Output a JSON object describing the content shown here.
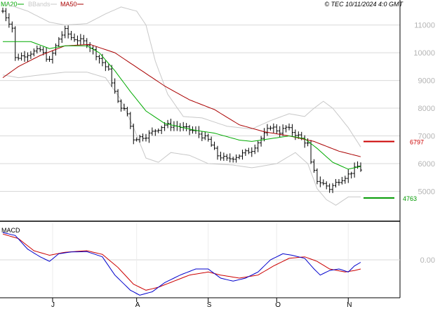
{
  "header": {
    "legend": [
      {
        "label": "MA20",
        "color": "#00aa00"
      },
      {
        "label": "BBands",
        "color": "#c8c8c8"
      },
      {
        "label": "MA50",
        "color": "#aa0000"
      }
    ],
    "copyright": "© TEC 10/11/2024 4:0 GMT"
  },
  "macd_label": "MACD",
  "colors": {
    "price": "#000000",
    "ma20": "#00aa00",
    "ma50": "#aa0000",
    "bbands": "#c8c8c8",
    "macd": "#0000cc",
    "signal": "#cc0000",
    "resistance": "#cc0000",
    "support": "#009900",
    "grid": "#d9d9d9",
    "label": "#b4b4b4"
  },
  "chart_data": {
    "type": "line",
    "price_panel": {
      "y_ticks": [
        {
          "value": 11000,
          "label": "11000"
        },
        {
          "value": 10000,
          "label": "10000"
        },
        {
          "value": 9000,
          "label": "9000"
        },
        {
          "value": 8000,
          "label": "8000"
        },
        {
          "value": 7000,
          "label": "7000"
        },
        {
          "value": 6000,
          "label": "6000"
        },
        {
          "value": 5000,
          "label": "5000"
        }
      ],
      "ylim": [
        4000,
        11800
      ],
      "levels": [
        {
          "name": "resistance",
          "value": 6797,
          "label": "6797"
        },
        {
          "name": "support",
          "value": 4763,
          "label": "4763"
        }
      ],
      "x_months": [
        {
          "index": 16,
          "label": "J"
        },
        {
          "index": 43,
          "label": "A"
        },
        {
          "index": 66,
          "label": "S"
        },
        {
          "index": 88,
          "label": "O"
        },
        {
          "index": 111,
          "label": "N"
        }
      ],
      "n_bars": 116,
      "price_path": [
        [
          0,
          11500
        ],
        [
          3,
          10900
        ],
        [
          4,
          9800
        ],
        [
          9,
          10000
        ],
        [
          12,
          10100
        ],
        [
          15,
          9700
        ],
        [
          18,
          10500
        ],
        [
          20,
          10800
        ],
        [
          22,
          10550
        ],
        [
          27,
          10350
        ],
        [
          31,
          9800
        ],
        [
          34,
          9350
        ],
        [
          37,
          8200
        ],
        [
          40,
          7800
        ],
        [
          42,
          6900
        ],
        [
          46,
          7000
        ],
        [
          52,
          7400
        ],
        [
          56,
          7350
        ],
        [
          62,
          7150
        ],
        [
          66,
          6850
        ],
        [
          69,
          6300
        ],
        [
          72,
          6150
        ],
        [
          76,
          6300
        ],
        [
          80,
          6500
        ],
        [
          84,
          7050
        ],
        [
          86,
          7350
        ],
        [
          89,
          7150
        ],
        [
          91,
          7300
        ],
        [
          95,
          7000
        ],
        [
          98,
          6700
        ],
        [
          99,
          6000
        ],
        [
          101,
          5400
        ],
        [
          104,
          5200
        ],
        [
          105,
          5100
        ],
        [
          108,
          5400
        ],
        [
          111,
          5600
        ],
        [
          114,
          5900
        ],
        [
          115,
          5800
        ]
      ],
      "ma20_path": [
        [
          0,
          10400
        ],
        [
          9,
          10400
        ],
        [
          15,
          10150
        ],
        [
          20,
          10250
        ],
        [
          27,
          10250
        ],
        [
          31,
          10000
        ],
        [
          36,
          9350
        ],
        [
          41,
          8600
        ],
        [
          46,
          7900
        ],
        [
          52,
          7450
        ],
        [
          62,
          7200
        ],
        [
          68,
          7100
        ],
        [
          76,
          6850
        ],
        [
          80,
          6800
        ],
        [
          86,
          6900
        ],
        [
          92,
          7000
        ],
        [
          97,
          6900
        ],
        [
          101,
          6550
        ],
        [
          106,
          6050
        ],
        [
          111,
          5800
        ],
        [
          115,
          5900
        ]
      ],
      "ma50_path": [
        [
          0,
          9100
        ],
        [
          5,
          9500
        ],
        [
          12,
          9900
        ],
        [
          20,
          10250
        ],
        [
          28,
          10300
        ],
        [
          36,
          10000
        ],
        [
          44,
          9400
        ],
        [
          52,
          8800
        ],
        [
          60,
          8300
        ],
        [
          68,
          7950
        ],
        [
          76,
          7400
        ],
        [
          84,
          7150
        ],
        [
          92,
          7000
        ],
        [
          100,
          6800
        ],
        [
          108,
          6450
        ],
        [
          115,
          6250
        ]
      ],
      "bb_upper_path": [
        [
          0,
          11800
        ],
        [
          8,
          11500
        ],
        [
          15,
          11100
        ],
        [
          20,
          11000
        ],
        [
          27,
          11050
        ],
        [
          33,
          11400
        ],
        [
          38,
          11650
        ],
        [
          43,
          11500
        ],
        [
          46,
          11000
        ],
        [
          49,
          9700
        ],
        [
          53,
          8500
        ],
        [
          58,
          7700
        ],
        [
          64,
          7650
        ],
        [
          72,
          7350
        ],
        [
          80,
          7250
        ],
        [
          86,
          7550
        ],
        [
          92,
          7800
        ],
        [
          97,
          7700
        ],
        [
          100,
          8000
        ],
        [
          103,
          8250
        ],
        [
          106,
          8000
        ],
        [
          111,
          7300
        ],
        [
          115,
          6600
        ]
      ],
      "bb_lower_path": [
        [
          0,
          9200
        ],
        [
          5,
          9100
        ],
        [
          12,
          9200
        ],
        [
          20,
          9300
        ],
        [
          27,
          9300
        ],
        [
          33,
          9100
        ],
        [
          38,
          8300
        ],
        [
          42,
          7300
        ],
        [
          46,
          6200
        ],
        [
          50,
          6050
        ],
        [
          54,
          6400
        ],
        [
          60,
          6300
        ],
        [
          66,
          6000
        ],
        [
          74,
          5950
        ],
        [
          80,
          5850
        ],
        [
          88,
          6000
        ],
        [
          94,
          6400
        ],
        [
          98,
          6000
        ],
        [
          101,
          5100
        ],
        [
          104,
          4700
        ],
        [
          107,
          4500
        ],
        [
          111,
          4800
        ],
        [
          115,
          4800
        ]
      ]
    },
    "macd_panel": {
      "y_ticks": [
        {
          "value": 0,
          "label": "0.00"
        }
      ],
      "ylim": [
        -1200,
        1200
      ],
      "macd_path": [
        [
          0,
          900
        ],
        [
          4,
          800
        ],
        [
          8,
          350
        ],
        [
          12,
          100
        ],
        [
          15,
          -50
        ],
        [
          18,
          200
        ],
        [
          22,
          260
        ],
        [
          27,
          270
        ],
        [
          32,
          100
        ],
        [
          36,
          -500
        ],
        [
          41,
          -1000
        ],
        [
          44,
          -1160
        ],
        [
          48,
          -1050
        ],
        [
          52,
          -750
        ],
        [
          57,
          -500
        ],
        [
          62,
          -300
        ],
        [
          66,
          -300
        ],
        [
          70,
          -600
        ],
        [
          74,
          -700
        ],
        [
          78,
          -600
        ],
        [
          82,
          -400
        ],
        [
          86,
          0
        ],
        [
          90,
          200
        ],
        [
          93,
          150
        ],
        [
          97,
          50
        ],
        [
          100,
          -300
        ],
        [
          102,
          -500
        ],
        [
          105,
          -350
        ],
        [
          108,
          -300
        ],
        [
          111,
          -400
        ],
        [
          113,
          -200
        ],
        [
          115,
          -80
        ]
      ],
      "signal_path": [
        [
          0,
          850
        ],
        [
          5,
          700
        ],
        [
          10,
          300
        ],
        [
          15,
          150
        ],
        [
          20,
          250
        ],
        [
          27,
          300
        ],
        [
          32,
          180
        ],
        [
          37,
          -250
        ],
        [
          42,
          -800
        ],
        [
          46,
          -1000
        ],
        [
          50,
          -900
        ],
        [
          55,
          -700
        ],
        [
          60,
          -500
        ],
        [
          66,
          -400
        ],
        [
          70,
          -500
        ],
        [
          76,
          -600
        ],
        [
          82,
          -500
        ],
        [
          87,
          -200
        ],
        [
          92,
          50
        ],
        [
          97,
          100
        ],
        [
          101,
          -50
        ],
        [
          105,
          -300
        ],
        [
          110,
          -400
        ],
        [
          113,
          -350
        ],
        [
          115,
          -300
        ]
      ]
    }
  }
}
